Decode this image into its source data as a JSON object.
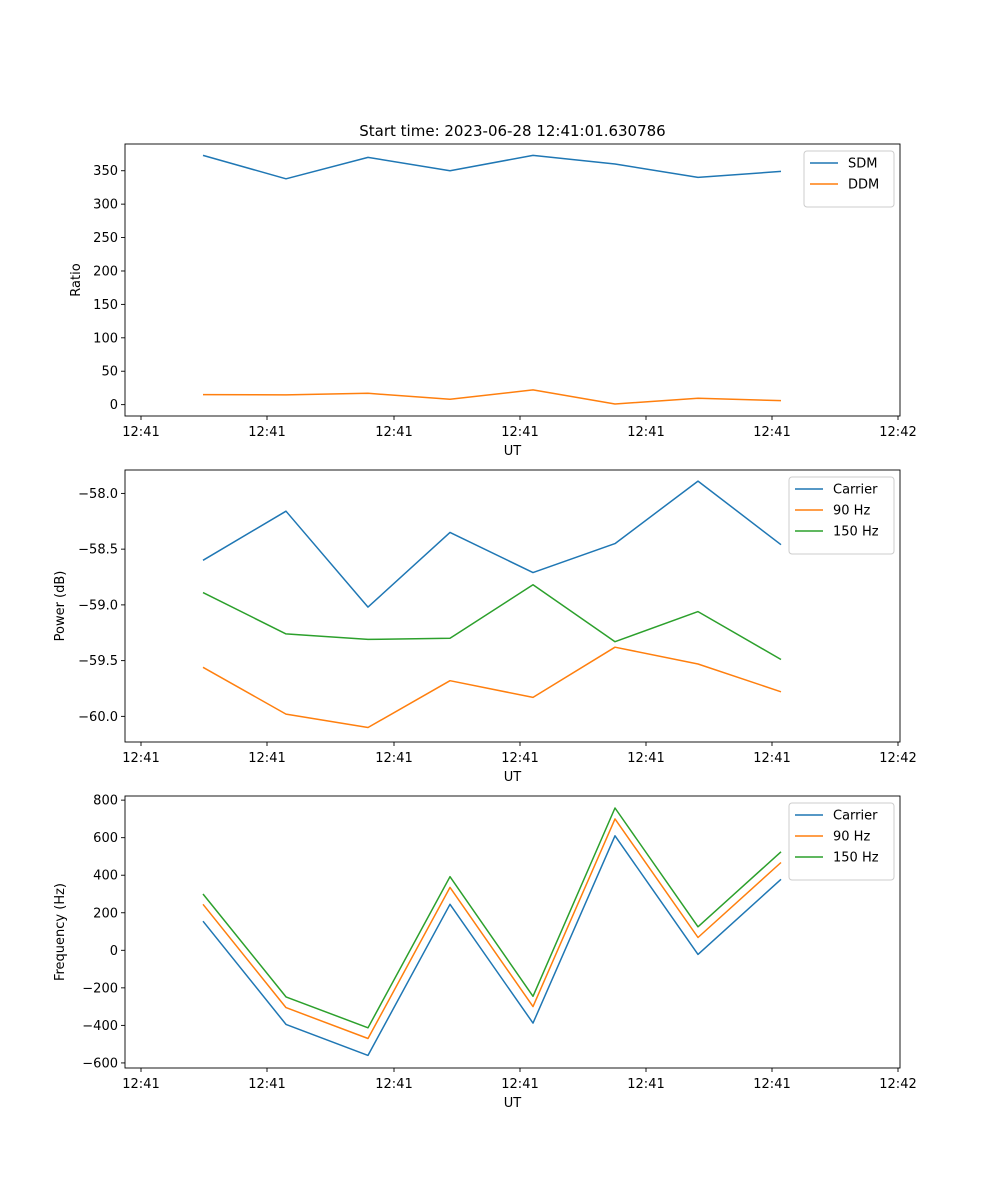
{
  "chart_data": [
    {
      "type": "line",
      "title": "Start time: 2023-06-28 12:41:01.630786",
      "xlabel": "UT",
      "ylabel": "Ratio",
      "x_tick_labels": [
        "12:41",
        "12:41",
        "12:41",
        "12:41",
        "12:41",
        "12:41",
        "12:42"
      ],
      "y_ticks": [
        0,
        50,
        100,
        150,
        200,
        250,
        300,
        350
      ],
      "ylim": [
        -17,
        390
      ],
      "grid": false,
      "legend_position": "top-right",
      "series": [
        {
          "name": "SDM",
          "color": "#1f77b4",
          "values": [
            373,
            338,
            370,
            350,
            373,
            360,
            340,
            349
          ]
        },
        {
          "name": "DDM",
          "color": "#ff7f0e",
          "values": [
            15,
            14.5,
            17,
            8,
            22,
            1,
            9.5,
            6
          ]
        }
      ]
    },
    {
      "type": "line",
      "title": "",
      "xlabel": "UT",
      "ylabel": "Power (dB)",
      "x_tick_labels": [
        "12:41",
        "12:41",
        "12:41",
        "12:41",
        "12:41",
        "12:41",
        "12:42"
      ],
      "y_ticks": [
        -60.0,
        -59.5,
        -59.0,
        -58.5,
        -58.0
      ],
      "y_tick_labels": [
        "−60.0",
        "−59.5",
        "−59.0",
        "−58.5",
        "−58.0"
      ],
      "ylim": [
        -60.23,
        -57.79
      ],
      "grid": false,
      "legend_position": "top-right",
      "series": [
        {
          "name": "Carrier",
          "color": "#1f77b4",
          "values": [
            -58.6,
            -58.16,
            -59.02,
            -58.35,
            -58.71,
            -58.45,
            -57.89,
            -58.46
          ]
        },
        {
          "name": "90 Hz",
          "color": "#ff7f0e",
          "values": [
            -59.56,
            -59.98,
            -60.1,
            -59.68,
            -59.83,
            -59.38,
            -59.53,
            -59.78
          ]
        },
        {
          "name": "150 Hz",
          "color": "#2ca02c",
          "values": [
            -58.89,
            -59.26,
            -59.31,
            -59.3,
            -58.82,
            -59.33,
            -59.06,
            -59.49
          ]
        }
      ]
    },
    {
      "type": "line",
      "title": "",
      "xlabel": "UT",
      "ylabel": "Frequency (Hz)",
      "x_tick_labels": [
        "12:41",
        "12:41",
        "12:41",
        "12:41",
        "12:41",
        "12:41",
        "12:42"
      ],
      "y_ticks": [
        -600,
        -400,
        -200,
        0,
        200,
        400,
        600,
        800
      ],
      "y_tick_labels": [
        "−600",
        "−400",
        "−200",
        "0",
        "200",
        "400",
        "600",
        "800"
      ],
      "ylim": [
        -627,
        822
      ],
      "grid": false,
      "legend_position": "top-right",
      "series": [
        {
          "name": "Carrier",
          "color": "#1f77b4",
          "values": [
            155,
            -395,
            -560,
            245,
            -388,
            610,
            -22,
            378
          ]
        },
        {
          "name": "90 Hz",
          "color": "#ff7f0e",
          "values": [
            245,
            -305,
            -470,
            335,
            -300,
            700,
            68,
            468
          ]
        },
        {
          "name": "150 Hz",
          "color": "#2ca02c",
          "values": [
            300,
            -248,
            -413,
            392,
            -245,
            758,
            125,
            525
          ]
        }
      ]
    }
  ]
}
